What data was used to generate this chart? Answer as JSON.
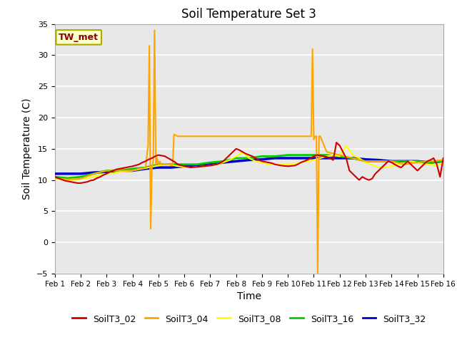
{
  "title": "Soil Temperature Set 3",
  "xlabel": "Time",
  "ylabel": "Soil Temperature (C)",
  "ylim": [
    -5,
    35
  ],
  "xlim": [
    0,
    15
  ],
  "yticks": [
    -5,
    0,
    5,
    10,
    15,
    20,
    25,
    30,
    35
  ],
  "xtick_labels": [
    "Feb 1",
    "Feb 2",
    "Feb 3",
    "Feb 4",
    "Feb 5",
    "Feb 6",
    "Feb 7",
    "Feb 8",
    "Feb 9",
    "Feb 10",
    "Feb 11",
    "Feb 12",
    "Feb 13",
    "Feb 14",
    "Feb 15",
    "Feb 16"
  ],
  "bg_color": "#e8e8e8",
  "series": {
    "SoilT3_02": {
      "color": "#cc0000",
      "lw": 1.5,
      "x": [
        0,
        0.125,
        0.25,
        0.375,
        0.5,
        0.625,
        0.75,
        0.875,
        1,
        1.125,
        1.25,
        1.375,
        1.5,
        1.625,
        1.75,
        1.875,
        2,
        2.125,
        2.25,
        2.375,
        2.5,
        2.625,
        2.75,
        2.875,
        3,
        3.125,
        3.25,
        3.375,
        3.5,
        3.625,
        3.75,
        3.875,
        4,
        4.125,
        4.25,
        4.375,
        4.5,
        4.625,
        4.75,
        4.875,
        5,
        5.125,
        5.25,
        5.375,
        5.5,
        5.625,
        5.75,
        5.875,
        6,
        6.125,
        6.25,
        6.375,
        6.5,
        6.625,
        6.75,
        6.875,
        7,
        7.125,
        7.25,
        7.375,
        7.5,
        7.625,
        7.75,
        7.875,
        8,
        8.125,
        8.25,
        8.375,
        8.5,
        8.625,
        8.75,
        8.875,
        9,
        9.125,
        9.25,
        9.375,
        9.5,
        9.625,
        9.75,
        9.875,
        10,
        10.125,
        10.25,
        10.375,
        10.5,
        10.625,
        10.75,
        10.875,
        11,
        11.125,
        11.25,
        11.375,
        11.5,
        11.625,
        11.75,
        11.875,
        12,
        12.125,
        12.25,
        12.375,
        12.5,
        12.625,
        12.75,
        12.875,
        13,
        13.125,
        13.25,
        13.375,
        13.5,
        13.625,
        13.75,
        13.875,
        14,
        14.125,
        14.25,
        14.375,
        14.5,
        14.625,
        14.75,
        14.875,
        15
      ],
      "y": [
        10.5,
        10.3,
        10.1,
        9.9,
        9.8,
        9.7,
        9.6,
        9.5,
        9.5,
        9.6,
        9.7,
        9.9,
        10.0,
        10.3,
        10.5,
        10.8,
        11.0,
        11.3,
        11.5,
        11.7,
        11.8,
        11.9,
        12.0,
        12.1,
        12.2,
        12.35,
        12.5,
        12.8,
        13.0,
        13.3,
        13.5,
        13.8,
        14.0,
        13.9,
        13.8,
        13.5,
        13.2,
        12.9,
        12.5,
        12.35,
        12.2,
        12.1,
        12.0,
        12.05,
        12.1,
        12.15,
        12.2,
        12.25,
        12.3,
        12.4,
        12.5,
        12.7,
        13.0,
        13.5,
        14.0,
        14.5,
        15.0,
        14.8,
        14.5,
        14.2,
        14.0,
        13.8,
        13.5,
        13.2,
        13.0,
        12.9,
        12.8,
        12.7,
        12.5,
        12.4,
        12.3,
        12.25,
        12.2,
        12.25,
        12.3,
        12.5,
        12.8,
        13.0,
        13.2,
        13.5,
        13.8,
        14.0,
        13.9,
        13.8,
        13.7,
        13.5,
        13.2,
        16.0,
        15.5,
        14.5,
        13.5,
        11.5,
        11.0,
        10.5,
        10.0,
        10.5,
        10.2,
        10.0,
        10.2,
        11.0,
        11.5,
        12.0,
        12.5,
        13.0,
        12.8,
        12.5,
        12.2,
        12.0,
        12.5,
        13.0,
        12.5,
        12.0,
        11.5,
        12.0,
        12.5,
        13.0,
        13.2,
        13.5,
        12.5,
        10.5,
        13.5
      ]
    },
    "SoilT3_04": {
      "color": "#ffa500",
      "lw": 1.5,
      "x": [
        0,
        0.5,
        1,
        1.5,
        2,
        2.5,
        3,
        3.25,
        3.5,
        3.6,
        3.65,
        3.7,
        3.75,
        3.8,
        3.85,
        3.9,
        3.95,
        4.0,
        4.05,
        4.1,
        4.15,
        4.2,
        4.25,
        4.3,
        4.35,
        4.4,
        4.45,
        4.5,
        4.55,
        4.6,
        4.65,
        4.7,
        4.75,
        5.0,
        5.5,
        6,
        6.5,
        7,
        7.5,
        8,
        8.5,
        9,
        9.5,
        9.9,
        9.95,
        10.0,
        10.05,
        10.1,
        10.15,
        10.2,
        10.25,
        10.5,
        11,
        11.5,
        12,
        12.5,
        13,
        13.5,
        14,
        14.5,
        15
      ],
      "y": [
        10.3,
        10.1,
        10.2,
        11.0,
        11.5,
        11.5,
        11.5,
        11.8,
        12.0,
        15.5,
        31.5,
        2.2,
        12.0,
        13.0,
        34.0,
        12.5,
        13.5,
        12.5,
        13.0,
        12.5,
        12.5,
        12.5,
        12.5,
        12.5,
        12.5,
        12.5,
        12.5,
        12.3,
        12.5,
        17.3,
        17.2,
        17.1,
        17.0,
        17.0,
        17.0,
        17.0,
        17.0,
        17.0,
        17.0,
        17.0,
        17.0,
        17.0,
        17.0,
        17.0,
        31.0,
        16.5,
        17.0,
        17.0,
        -5.0,
        17.0,
        17.0,
        14.5,
        14.0,
        13.5,
        13.0,
        13.0,
        13.0,
        12.5,
        12.8,
        13.0,
        13.2
      ]
    },
    "SoilT3_08": {
      "color": "#ffff00",
      "lw": 1.5,
      "x": [
        0,
        0.25,
        0.5,
        0.75,
        1,
        1.25,
        1.5,
        1.75,
        2,
        2.25,
        2.5,
        2.75,
        3,
        3.25,
        3.5,
        3.75,
        4,
        4.25,
        4.5,
        4.75,
        5,
        5.25,
        5.5,
        5.75,
        6,
        6.25,
        6.5,
        6.75,
        7,
        7.25,
        7.5,
        7.75,
        8,
        8.25,
        8.5,
        8.75,
        9,
        9.25,
        9.5,
        9.75,
        10,
        10.25,
        10.5,
        10.75,
        11,
        11.25,
        11.5,
        11.75,
        12,
        12.25,
        12.5,
        12.75,
        13,
        13.25,
        13.5,
        13.75,
        14,
        14.25,
        14.5,
        14.75,
        15
      ],
      "y": [
        10.2,
        10.1,
        10.0,
        10.0,
        10.2,
        10.3,
        10.5,
        10.8,
        11.0,
        11.1,
        11.3,
        11.4,
        11.5,
        11.7,
        11.9,
        12.1,
        12.3,
        12.5,
        12.4,
        12.2,
        12.1,
        12.0,
        12.1,
        12.2,
        12.3,
        12.5,
        12.8,
        13.2,
        13.8,
        14.5,
        13.5,
        13.0,
        12.8,
        12.5,
        12.5,
        12.5,
        12.5,
        12.6,
        12.8,
        13.0,
        13.2,
        13.5,
        13.8,
        14.0,
        13.8,
        15.5,
        14.0,
        13.5,
        12.8,
        12.5,
        12.0,
        12.0,
        12.2,
        12.5,
        12.7,
        13.0,
        12.8,
        12.5,
        12.5,
        12.3,
        12.8
      ]
    },
    "SoilT3_16": {
      "color": "#00cc00",
      "lw": 2.0,
      "x": [
        0,
        0.5,
        1,
        1.5,
        2,
        2.5,
        3,
        3.5,
        4,
        4.5,
        5,
        5.5,
        6,
        6.5,
        7,
        7.5,
        8,
        8.5,
        9,
        9.5,
        10,
        10.5,
        11,
        11.5,
        12,
        12.5,
        13,
        13.5,
        14,
        14.5,
        15
      ],
      "y": [
        10.5,
        10.3,
        10.5,
        11.0,
        11.5,
        11.5,
        11.8,
        12.0,
        12.5,
        12.5,
        12.5,
        12.5,
        12.8,
        13.0,
        13.5,
        13.5,
        13.8,
        13.8,
        14.0,
        14.0,
        14.0,
        14.0,
        13.8,
        13.5,
        13.0,
        13.0,
        13.0,
        13.0,
        13.0,
        12.8,
        13.0
      ]
    },
    "SoilT3_32": {
      "color": "#0000cc",
      "lw": 2.5,
      "x": [
        0,
        0.5,
        1,
        1.5,
        2,
        2.5,
        3,
        3.5,
        4,
        4.5,
        5,
        5.5,
        6,
        6.5,
        7,
        7.5,
        8,
        8.5,
        9,
        9.5,
        10,
        10.5,
        11,
        11.5,
        12,
        12.5,
        13,
        13.5,
        14,
        14.5,
        15
      ],
      "y": [
        11.0,
        11.0,
        11.0,
        11.2,
        11.3,
        11.5,
        11.5,
        11.8,
        12.0,
        12.0,
        12.2,
        12.3,
        12.5,
        12.8,
        13.0,
        13.2,
        13.3,
        13.5,
        13.5,
        13.5,
        13.5,
        13.5,
        13.5,
        13.5,
        13.3,
        13.2,
        13.0,
        13.0,
        13.0,
        12.8,
        13.0
      ]
    }
  },
  "legend": [
    {
      "label": "SoilT3_02",
      "color": "#cc0000"
    },
    {
      "label": "SoilT3_04",
      "color": "#ffa500"
    },
    {
      "label": "SoilT3_08",
      "color": "#ffff00"
    },
    {
      "label": "SoilT3_16",
      "color": "#00cc00"
    },
    {
      "label": "SoilT3_32",
      "color": "#0000cc"
    }
  ]
}
